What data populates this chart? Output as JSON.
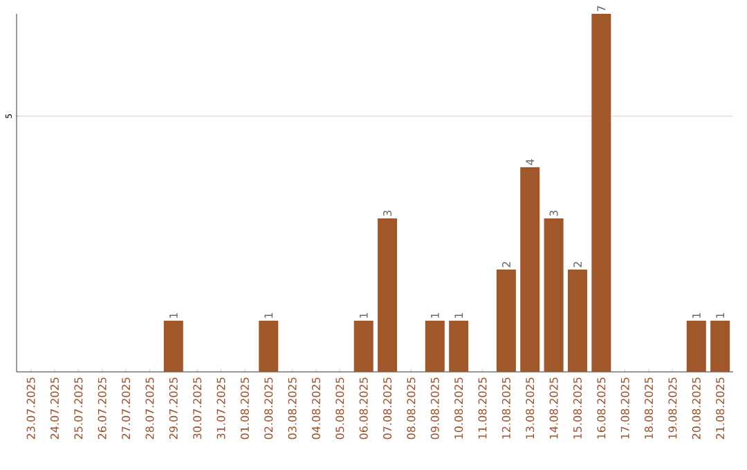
{
  "chart_data": {
    "type": "bar",
    "categories": [
      "23.07.2025",
      "24.07.2025",
      "25.07.2025",
      "26.07.2025",
      "27.07.2025",
      "28.07.2025",
      "29.07.2025",
      "30.07.2025",
      "31.07.2025",
      "01.08.2025",
      "02.08.2025",
      "03.08.2025",
      "04.08.2025",
      "05.08.2025",
      "06.08.2025",
      "07.08.2025",
      "08.08.2025",
      "09.08.2025",
      "10.08.2025",
      "11.08.2025",
      "12.08.2025",
      "13.08.2025",
      "14.08.2025",
      "15.08.2025",
      "16.08.2025",
      "17.08.2025",
      "18.08.2025",
      "19.08.2025",
      "20.08.2025",
      "21.08.2025"
    ],
    "values": [
      0,
      0,
      0,
      0,
      0,
      0,
      1,
      0,
      0,
      0,
      1,
      0,
      0,
      0,
      1,
      3,
      0,
      1,
      1,
      0,
      2,
      4,
      3,
      2,
      7,
      0,
      0,
      0,
      1,
      1
    ],
    "value_labels": [
      null,
      null,
      null,
      null,
      null,
      null,
      "1",
      null,
      null,
      null,
      "1",
      null,
      null,
      null,
      "1",
      "3",
      null,
      "1",
      "1",
      null,
      "2",
      "4",
      "3",
      "2",
      "7",
      null,
      null,
      null,
      "1",
      "1"
    ],
    "color": "#a0582a",
    "ylim": [
      0,
      7
    ],
    "yticks": [
      5
    ],
    "grid": "y"
  }
}
